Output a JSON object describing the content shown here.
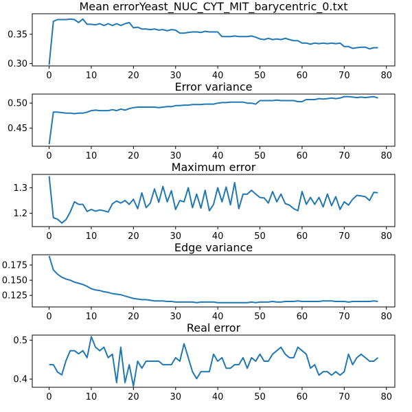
{
  "chart_data": [
    {
      "type": "line",
      "title": "Mean errorYeast_NUC_CYT_MIT_barycentric_0.txt",
      "xlabel": "",
      "ylabel": "",
      "xlim": [
        -4,
        82
      ],
      "ylim": [
        0.296,
        0.385
      ],
      "xticks": [
        0,
        10,
        20,
        30,
        40,
        50,
        60,
        70,
        80
      ],
      "yticks": [
        0.3,
        0.35
      ],
      "ytick_labels": [
        "0.30",
        "0.35"
      ],
      "grid": false,
      "color": "#1f77b4",
      "values": [
        0.298,
        0.372,
        0.375,
        0.375,
        0.375,
        0.376,
        0.375,
        0.37,
        0.376,
        0.367,
        0.367,
        0.366,
        0.368,
        0.365,
        0.368,
        0.365,
        0.368,
        0.365,
        0.368,
        0.37,
        0.361,
        0.362,
        0.359,
        0.359,
        0.358,
        0.359,
        0.357,
        0.358,
        0.356,
        0.358,
        0.357,
        0.352,
        0.352,
        0.353,
        0.354,
        0.354,
        0.353,
        0.355,
        0.354,
        0.354,
        0.354,
        0.346,
        0.346,
        0.346,
        0.347,
        0.346,
        0.346,
        0.346,
        0.347,
        0.345,
        0.342,
        0.341,
        0.343,
        0.341,
        0.342,
        0.341,
        0.343,
        0.341,
        0.339,
        0.339,
        0.335,
        0.335,
        0.333,
        0.335,
        0.334,
        0.335,
        0.334,
        0.335,
        0.334,
        0.335,
        0.329,
        0.329,
        0.326,
        0.327,
        0.328,
        0.328,
        0.325,
        0.327,
        0.327
      ]
    },
    {
      "type": "line",
      "title": "Error variance",
      "xlabel": "",
      "ylabel": "",
      "xlim": [
        -4,
        82
      ],
      "ylim": [
        0.414,
        0.518
      ],
      "xticks": [
        0,
        10,
        20,
        30,
        40,
        50,
        60,
        70,
        80
      ],
      "yticks": [
        0.45,
        0.5
      ],
      "ytick_labels": [
        "0.45",
        "0.50"
      ],
      "grid": false,
      "color": "#1f77b4",
      "values": [
        0.418,
        0.482,
        0.482,
        0.481,
        0.48,
        0.48,
        0.479,
        0.48,
        0.48,
        0.482,
        0.485,
        0.486,
        0.485,
        0.485,
        0.485,
        0.487,
        0.485,
        0.488,
        0.486,
        0.489,
        0.491,
        0.492,
        0.492,
        0.492,
        0.492,
        0.492,
        0.491,
        0.492,
        0.493,
        0.493,
        0.495,
        0.495,
        0.496,
        0.496,
        0.497,
        0.497,
        0.497,
        0.498,
        0.498,
        0.498,
        0.5,
        0.501,
        0.501,
        0.502,
        0.502,
        0.502,
        0.502,
        0.5,
        0.5,
        0.498,
        0.505,
        0.505,
        0.505,
        0.505,
        0.506,
        0.505,
        0.505,
        0.505,
        0.505,
        0.503,
        0.503,
        0.507,
        0.507,
        0.507,
        0.509,
        0.508,
        0.509,
        0.51,
        0.509,
        0.51,
        0.513,
        0.513,
        0.512,
        0.511,
        0.512,
        0.511,
        0.512,
        0.513,
        0.51
      ]
    },
    {
      "type": "line",
      "title": "Maximum error",
      "xlabel": "",
      "ylabel": "",
      "xlim": [
        -4,
        82
      ],
      "ylim": [
        1.148,
        1.352
      ],
      "xticks": [
        0,
        10,
        20,
        30,
        40,
        50,
        60,
        70,
        80
      ],
      "yticks": [
        1.2,
        1.3
      ],
      "ytick_labels": [
        "1.2",
        "1.3"
      ],
      "grid": false,
      "color": "#1f77b4",
      "values": [
        1.345,
        1.183,
        1.177,
        1.162,
        1.175,
        1.205,
        1.245,
        1.235,
        1.235,
        1.207,
        1.215,
        1.208,
        1.213,
        1.21,
        1.205,
        1.237,
        1.248,
        1.24,
        1.25,
        1.235,
        1.255,
        1.218,
        1.28,
        1.222,
        1.24,
        1.295,
        1.243,
        1.305,
        1.245,
        1.288,
        1.215,
        1.25,
        1.245,
        1.3,
        1.222,
        1.275,
        1.22,
        1.29,
        1.21,
        1.235,
        1.3,
        1.245,
        1.303,
        1.233,
        1.32,
        1.218,
        1.275,
        1.275,
        1.29,
        1.275,
        1.262,
        1.26,
        1.24,
        1.285,
        1.245,
        1.275,
        1.238,
        1.232,
        1.218,
        1.21,
        1.285,
        1.235,
        1.262,
        1.235,
        1.262,
        1.225,
        1.275,
        1.23,
        1.265,
        1.215,
        1.245,
        1.232,
        1.255,
        1.27,
        1.268,
        1.265,
        1.25,
        1.282,
        1.28
      ]
    },
    {
      "type": "line",
      "title": "Edge variance",
      "xlabel": "",
      "ylabel": "",
      "xlim": [
        -4,
        82
      ],
      "ylim": [
        0.106,
        0.192
      ],
      "xticks": [
        0,
        10,
        20,
        30,
        40,
        50,
        60,
        70,
        80
      ],
      "yticks": [
        0.125,
        0.15,
        0.175
      ],
      "ytick_labels": [
        "0.125",
        "0.150",
        "0.175"
      ],
      "grid": false,
      "color": "#1f77b4",
      "values": [
        0.19,
        0.167,
        0.16,
        0.155,
        0.152,
        0.15,
        0.147,
        0.145,
        0.143,
        0.14,
        0.136,
        0.134,
        0.133,
        0.131,
        0.13,
        0.128,
        0.127,
        0.126,
        0.124,
        0.122,
        0.12,
        0.119,
        0.118,
        0.118,
        0.117,
        0.116,
        0.116,
        0.116,
        0.115,
        0.115,
        0.114,
        0.114,
        0.114,
        0.114,
        0.114,
        0.113,
        0.114,
        0.114,
        0.114,
        0.114,
        0.113,
        0.113,
        0.113,
        0.113,
        0.113,
        0.113,
        0.113,
        0.113,
        0.114,
        0.113,
        0.114,
        0.114,
        0.114,
        0.115,
        0.114,
        0.114,
        0.115,
        0.115,
        0.115,
        0.116,
        0.115,
        0.115,
        0.115,
        0.115,
        0.115,
        0.116,
        0.116,
        0.116,
        0.115,
        0.115,
        0.115,
        0.114,
        0.115,
        0.115,
        0.115,
        0.115,
        0.115,
        0.116,
        0.115
      ]
    },
    {
      "type": "line",
      "title": "Real error",
      "xlabel": "",
      "ylabel": "",
      "xlim": [
        -4,
        82
      ],
      "ylim": [
        0.379,
        0.513
      ],
      "xticks": [
        0,
        10,
        20,
        30,
        40,
        50,
        60,
        70,
        80
      ],
      "yticks": [
        0.4,
        0.5
      ],
      "ytick_labels": [
        "0.4",
        "0.5"
      ],
      "grid": false,
      "color": "#1f77b4",
      "values": [
        0.437,
        0.437,
        0.418,
        0.411,
        0.447,
        0.473,
        0.473,
        0.465,
        0.473,
        0.455,
        0.509,
        0.482,
        0.473,
        0.482,
        0.455,
        0.464,
        0.391,
        0.482,
        0.391,
        0.437,
        0.382,
        0.446,
        0.428,
        0.446,
        0.446,
        0.446,
        0.446,
        0.437,
        0.437,
        0.437,
        0.455,
        0.446,
        0.491,
        0.455,
        0.419,
        0.401,
        0.419,
        0.419,
        0.419,
        0.464,
        0.446,
        0.455,
        0.428,
        0.428,
        0.437,
        0.437,
        0.455,
        0.428,
        0.455,
        0.446,
        0.464,
        0.446,
        0.446,
        0.464,
        0.473,
        0.482,
        0.464,
        0.455,
        0.455,
        0.482,
        0.473,
        0.464,
        0.428,
        0.437,
        0.41,
        0.419,
        0.419,
        0.41,
        0.419,
        0.41,
        0.419,
        0.464,
        0.437,
        0.455,
        0.464,
        0.455,
        0.446,
        0.446,
        0.455
      ]
    }
  ]
}
